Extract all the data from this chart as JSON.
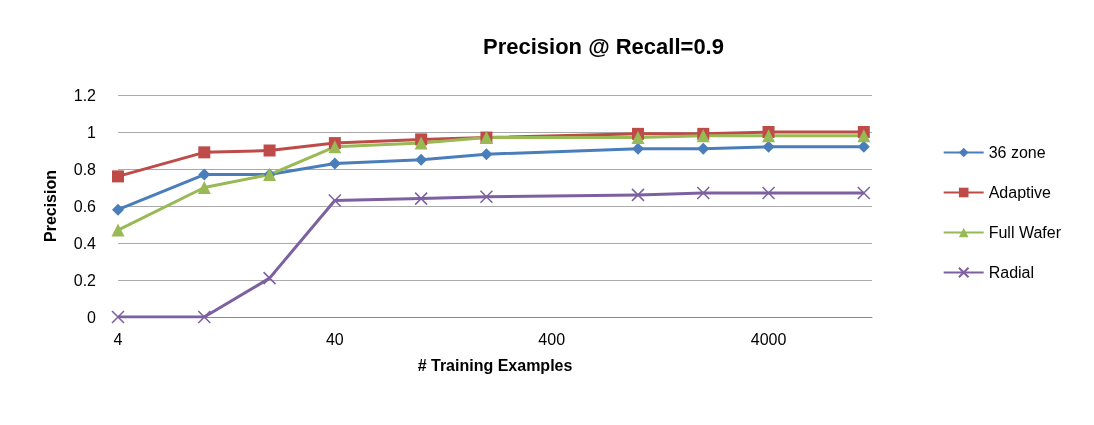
{
  "chart_data": {
    "type": "line",
    "title": "Precision @ Recall=0.9",
    "xlabel": "# Training Examples",
    "ylabel": "Precision",
    "x": [
      4,
      10,
      20,
      40,
      100,
      200,
      1000,
      2000,
      4000,
      11000
    ],
    "series": [
      {
        "name": "36 zone",
        "color": "#4a7ebb",
        "marker": "diamond",
        "values": [
          0.58,
          0.77,
          0.77,
          0.83,
          0.85,
          0.88,
          0.91,
          0.91,
          0.92,
          0.92
        ]
      },
      {
        "name": "Adaptive",
        "color": "#be4b48",
        "marker": "square",
        "values": [
          0.76,
          0.89,
          0.9,
          0.94,
          0.96,
          0.97,
          0.99,
          0.99,
          1.0,
          1.0
        ]
      },
      {
        "name": "Full Wafer",
        "color": "#98b954",
        "marker": "triangle",
        "values": [
          0.47,
          0.7,
          0.77,
          0.92,
          0.94,
          0.97,
          0.97,
          0.98,
          0.98,
          0.98
        ]
      },
      {
        "name": "Radial",
        "color": "#7d60a0",
        "marker": "cross",
        "values": [
          0,
          0,
          0.21,
          0.63,
          0.64,
          0.65,
          0.66,
          0.67,
          0.67,
          0.67
        ]
      }
    ],
    "log": "x",
    "xlim": [
      4,
      12000
    ],
    "xticks": [
      4,
      40,
      400,
      4000
    ],
    "ylim": [
      0,
      1.2
    ],
    "yticks": [
      0,
      0.2,
      0.4,
      0.6,
      0.8,
      1,
      1.2
    ],
    "grid": "y",
    "legend": "right"
  }
}
